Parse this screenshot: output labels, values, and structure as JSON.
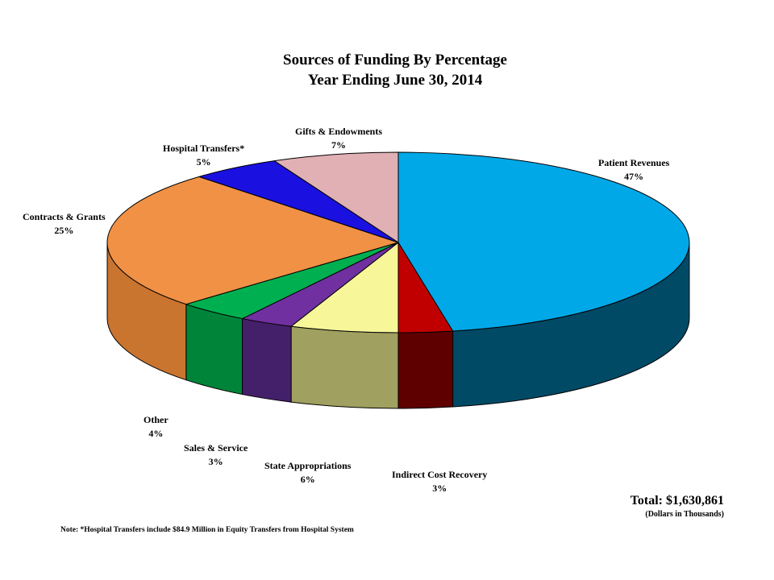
{
  "chart_data": {
    "type": "pie",
    "title": "Sources of Funding By Percentage",
    "subtitle": "Year Ending June 30, 2014",
    "three_d": true,
    "slices": [
      {
        "label": "Patient Revenues",
        "pct_label": "47%",
        "value": 47,
        "color": "#00a8e8",
        "side_color": "#004a66"
      },
      {
        "label": "Indirect Cost Recovery",
        "pct_label": "3%",
        "value": 3,
        "color": "#c00000",
        "side_color": "#5e0000"
      },
      {
        "label": "State Appropriations",
        "pct_label": "6%",
        "value": 6,
        "color": "#f7f79a",
        "side_color": "#a0a060"
      },
      {
        "label": "Sales & Service",
        "pct_label": "3%",
        "value": 3,
        "color": "#7030a0",
        "side_color": "#45206a"
      },
      {
        "label": "Other",
        "pct_label": "4%",
        "value": 4,
        "color": "#00b050",
        "side_color": "#00843a"
      },
      {
        "label": "Contracts & Grants",
        "pct_label": "25%",
        "value": 25,
        "color": "#f09146",
        "side_color": "#c9742f"
      },
      {
        "label": "Hospital Transfers*",
        "pct_label": "5%",
        "value": 5,
        "color": "#1a10e0",
        "side_color": "#0d0880"
      },
      {
        "label": "Gifts & Endowments",
        "pct_label": "7%",
        "value": 7,
        "color": "#e0b0b4",
        "side_color": "#a08084"
      }
    ],
    "start_angle": "12 o'clock",
    "direction": "clockwise"
  },
  "total": {
    "value_label": "Total: $1,630,861",
    "unit_label": "(Dollars in Thousands)"
  },
  "note": "Note:  *Hospital Transfers include $84.9 Million in Equity Transfers from Hospital System"
}
